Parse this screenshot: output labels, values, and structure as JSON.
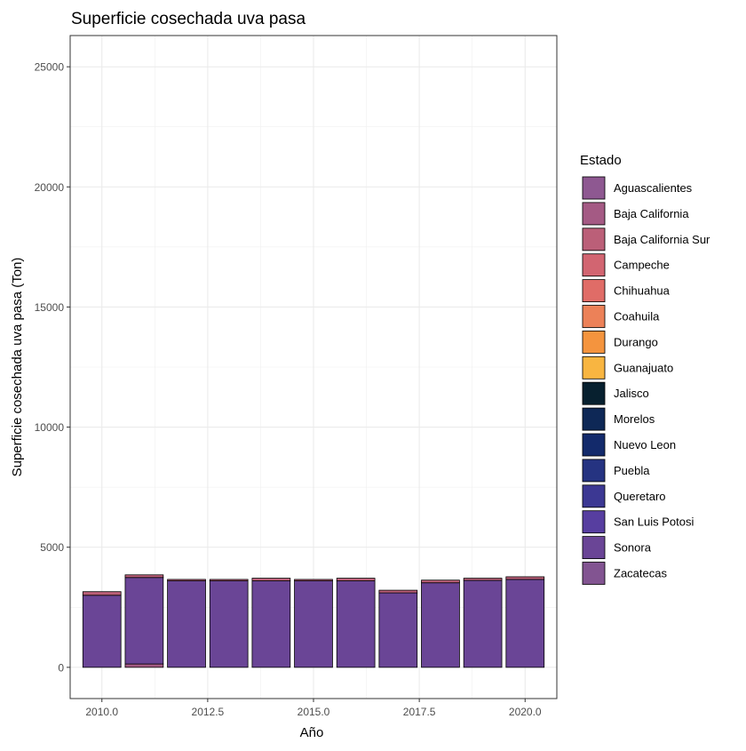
{
  "chart_data": {
    "type": "bar",
    "stacked": true,
    "title": "Superficie cosechada uva pasa",
    "xlabel": "Año",
    "ylabel": "Superficie cosechada uva pasa (Ton)",
    "xlim": [
      2009.25,
      2020.75
    ],
    "ylim": [
      -1300,
      26300
    ],
    "x_ticks": [
      2010.0,
      2012.5,
      2015.0,
      2017.5,
      2020.0
    ],
    "x_tick_labels": [
      "2010.0",
      "2012.5",
      "2015.0",
      "2017.5",
      "2020.0"
    ],
    "y_ticks": [
      0,
      5000,
      10000,
      15000,
      20000,
      25000
    ],
    "y_tick_labels": [
      "0",
      "5000",
      "10000",
      "15000",
      "20000",
      "25000"
    ],
    "grid": true,
    "legend": {
      "title": "Estado",
      "placement": "right",
      "items": [
        {
          "label": "Aguascalientes",
          "color": "#8e5891"
        },
        {
          "label": "Baja California",
          "color": "#a45a84"
        },
        {
          "label": "Baja California Sur",
          "color": "#bb5f78"
        },
        {
          "label": "Campeche",
          "color": "#d26571"
        },
        {
          "label": "Chihuahua",
          "color": "#e06c67"
        },
        {
          "label": "Coahuila",
          "color": "#ec8158"
        },
        {
          "label": "Durango",
          "color": "#f4943e"
        },
        {
          "label": "Guanajuato",
          "color": "#f8b541"
        },
        {
          "label": "Jalisco",
          "color": "#07202f"
        },
        {
          "label": "Morelos",
          "color": "#0e2856"
        },
        {
          "label": "Nuevo Leon",
          "color": "#132a6b"
        },
        {
          "label": "Puebla",
          "color": "#253381"
        },
        {
          "label": "Queretaro",
          "color": "#3c3893"
        },
        {
          "label": "San Luis Potosi",
          "color": "#573ea0"
        },
        {
          "label": "Sonora",
          "color": "#6a4596"
        },
        {
          "label": "Zacatecas",
          "color": "#825491"
        }
      ]
    },
    "x": [
      2010,
      2011,
      2012,
      2013,
      2014,
      2015,
      2016,
      2017,
      2018,
      2019,
      2020
    ],
    "series": [
      {
        "name": "Baja California",
        "values": [
          0,
          140,
          0,
          0,
          0,
          0,
          0,
          0,
          0,
          0,
          0
        ]
      },
      {
        "name": "Sonora",
        "values": [
          3000,
          3600,
          3600,
          3600,
          3600,
          3600,
          3600,
          3100,
          3520,
          3620,
          3660
        ]
      },
      {
        "name": "Baja California Sur",
        "values": [
          150,
          110,
          60,
          60,
          110,
          60,
          110,
          110,
          110,
          90,
          110
        ]
      }
    ]
  }
}
